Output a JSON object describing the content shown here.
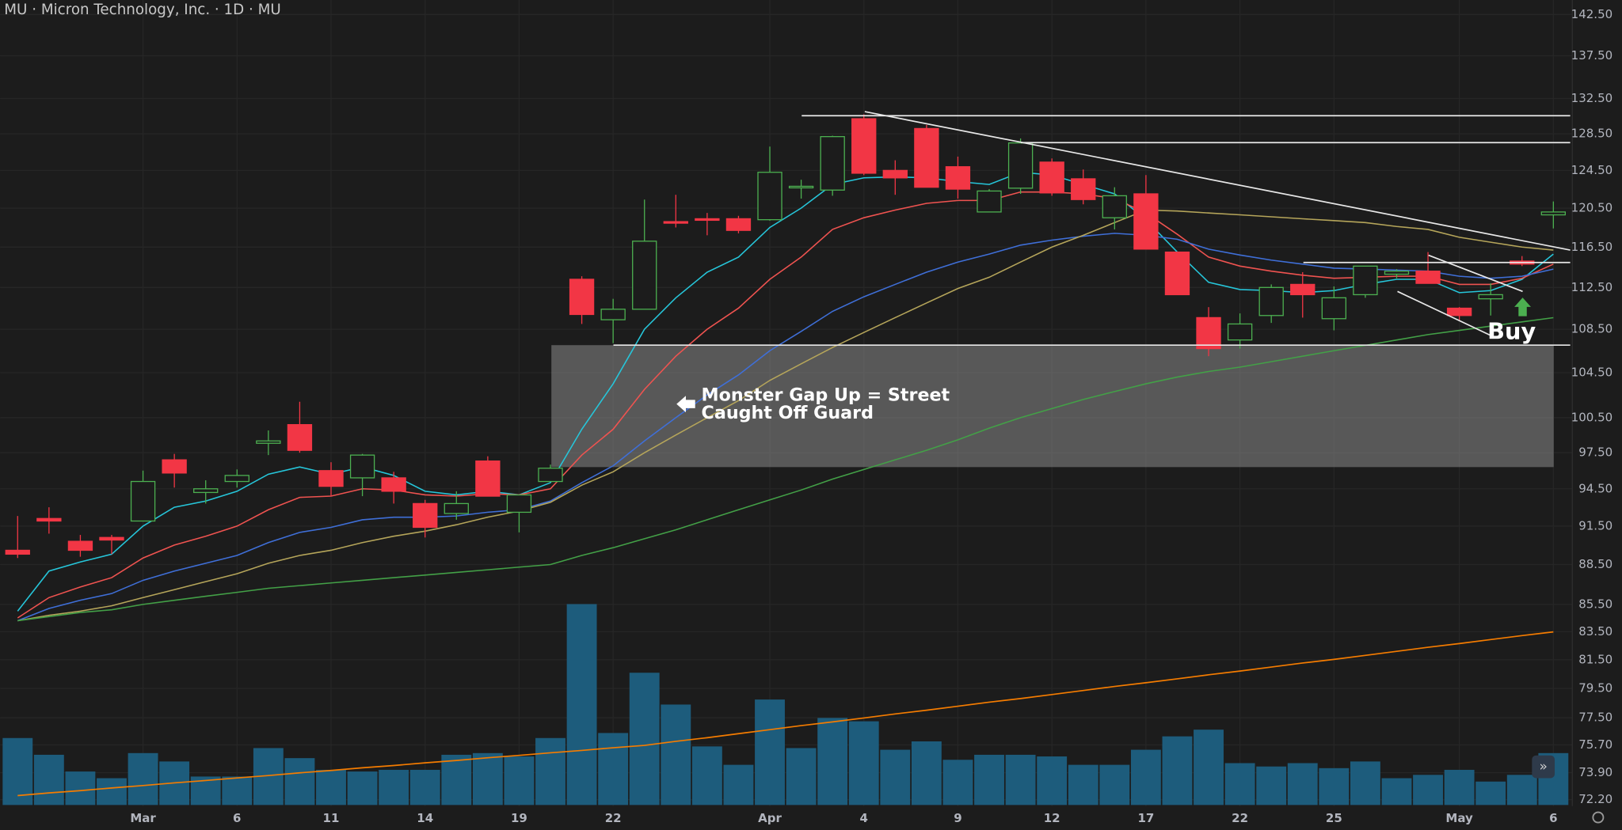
{
  "chart_data": {
    "type": "candlestick",
    "title": "MU · Micron Technology, Inc. · 1D · MU",
    "categories": [
      null,
      null,
      null,
      null,
      "Mar",
      null,
      null,
      "6",
      null,
      null,
      "11",
      null,
      null,
      "14",
      null,
      null,
      "19",
      null,
      null,
      "22",
      null,
      null,
      null,
      null,
      "Apr",
      null,
      null,
      "4",
      null,
      null,
      "9",
      null,
      null,
      "12",
      null,
      null,
      "17",
      null,
      null,
      "22",
      null,
      null,
      "25",
      null,
      null,
      null,
      "May",
      null,
      null,
      "6"
    ],
    "open": [
      89.6,
      92.1,
      90.3,
      90.6,
      91.9,
      96.9,
      94.2,
      95.1,
      98.3,
      99.9,
      96.0,
      95.4,
      95.4,
      93.3,
      92.5,
      96.8,
      92.6,
      95.1,
      113.3,
      109.4,
      110.4,
      119.1,
      119.4,
      119.4,
      119.3,
      122.7,
      122.4,
      130.2,
      124.5,
      129.1,
      124.9,
      120.1,
      122.6,
      125.4,
      123.6,
      119.5,
      122.0,
      116.0,
      109.6,
      107.5,
      109.8,
      112.8,
      109.5,
      111.8,
      113.8,
      114.1,
      110.5,
      111.4,
      115.1,
      119.8
    ],
    "high": [
      92.3,
      93.0,
      90.8,
      90.8,
      96.0,
      97.4,
      95.2,
      96.1,
      99.4,
      101.9,
      96.7,
      97.4,
      95.9,
      93.6,
      94.3,
      97.2,
      94.0,
      96.5,
      113.6,
      111.4,
      121.4,
      121.9,
      120.0,
      119.7,
      127.1,
      123.5,
      128.3,
      130.7,
      125.6,
      129.5,
      126.0,
      122.5,
      128.0,
      125.8,
      124.6,
      122.7,
      124.0,
      116.0,
      110.6,
      110.0,
      112.8,
      114.0,
      112.6,
      114.6,
      114.3,
      116.0,
      110.6,
      112.9,
      115.6,
      121.2
    ],
    "low": [
      89.0,
      90.9,
      89.1,
      89.3,
      91.9,
      94.6,
      93.3,
      94.6,
      97.3,
      97.5,
      93.9,
      93.9,
      93.3,
      90.6,
      92.0,
      93.9,
      91.0,
      95.1,
      109.0,
      107.2,
      110.4,
      118.5,
      117.7,
      117.9,
      119.2,
      121.5,
      121.8,
      124.0,
      121.9,
      122.7,
      121.5,
      120.1,
      122.0,
      121.8,
      120.9,
      118.3,
      116.3,
      111.8,
      106.0,
      106.7,
      109.1,
      109.6,
      108.4,
      111.5,
      113.4,
      112.9,
      109.3,
      109.8,
      114.6,
      118.4
    ],
    "close": [
      89.3,
      91.9,
      89.6,
      90.4,
      95.1,
      95.8,
      94.5,
      95.6,
      98.5,
      97.7,
      94.7,
      97.3,
      94.3,
      91.4,
      93.3,
      93.9,
      94.0,
      96.2,
      109.9,
      110.4,
      117.1,
      119.0,
      119.3,
      118.2,
      124.3,
      122.8,
      128.2,
      124.2,
      123.7,
      122.7,
      122.5,
      122.3,
      127.5,
      122.1,
      121.4,
      121.8,
      116.3,
      111.8,
      106.7,
      109.0,
      112.5,
      111.8,
      111.5,
      114.6,
      114.1,
      112.9,
      109.8,
      111.8,
      114.8,
      120.1
    ],
    "up_color": "#4caf50",
    "down_color": "#f23645",
    "log_scale": true,
    "grid": true,
    "ylim": [
      71.8,
      144.3
    ],
    "yticks": [
      {
        "value": 142.5,
        "label": "142.50"
      },
      {
        "value": 137.5,
        "label": "137.50"
      },
      {
        "value": 132.5,
        "label": "132.50"
      },
      {
        "value": 128.5,
        "label": "128.50"
      },
      {
        "value": 124.5,
        "label": "124.50"
      },
      {
        "value": 120.5,
        "label": "120.50"
      },
      {
        "value": 116.5,
        "label": "116.50"
      },
      {
        "value": 112.5,
        "label": "112.50"
      },
      {
        "value": 108.5,
        "label": "108.50"
      },
      {
        "value": 104.5,
        "label": "104.50"
      },
      {
        "value": 100.5,
        "label": "100.50"
      },
      {
        "value": 97.5,
        "label": "97.50"
      },
      {
        "value": 94.5,
        "label": "94.50"
      },
      {
        "value": 91.5,
        "label": "91.50"
      },
      {
        "value": 88.5,
        "label": "88.50"
      },
      {
        "value": 85.5,
        "label": "85.50"
      },
      {
        "value": 83.5,
        "label": "83.50"
      },
      {
        "value": 81.5,
        "label": "81.50"
      },
      {
        "value": 79.5,
        "label": "79.50"
      },
      {
        "value": 77.5,
        "label": "77.50"
      },
      {
        "value": 75.7,
        "label": "75.70"
      },
      {
        "value": 73.9,
        "label": "73.90"
      },
      {
        "value": 72.2,
        "label": "72.20"
      }
    ],
    "overlays": [
      {
        "color": "#26c6da",
        "values": [
          85,
          88,
          88.7,
          89.3,
          91.5,
          93,
          93.5,
          94.3,
          95.7,
          96.3,
          95.7,
          96.3,
          95.6,
          94.3,
          94.0,
          94.3,
          94.0,
          95,
          99.5,
          103.5,
          108.5,
          111.5,
          114,
          115.5,
          118.5,
          120.5,
          123,
          123.7,
          123.8,
          123.7,
          123.3,
          123,
          124.3,
          124,
          123,
          122,
          119.3,
          116,
          113,
          112.3,
          112.2,
          112,
          112.2,
          112.8,
          113.3,
          113.3,
          112,
          112.2,
          113.3,
          115.8
        ]
      },
      {
        "color": "#ef5350",
        "values": [
          84.5,
          86,
          86.8,
          87.5,
          89,
          90,
          90.7,
          91.5,
          92.8,
          93.8,
          93.9,
          94.5,
          94.4,
          94.0,
          93.9,
          94.1,
          94.0,
          94.5,
          97.3,
          99.5,
          103,
          106,
          108.5,
          110.5,
          113.3,
          115.5,
          118.3,
          119.5,
          120.3,
          121,
          121.3,
          121.3,
          122.2,
          122.2,
          122,
          121.5,
          120,
          117.8,
          115.5,
          114.6,
          114.1,
          113.7,
          113.4,
          113.5,
          113.6,
          113.6,
          112.8,
          112.8,
          113.4,
          114.8
        ]
      },
      {
        "color": "#3f6fd8",
        "values": [
          84.3,
          85.2,
          85.8,
          86.3,
          87.3,
          88,
          88.6,
          89.2,
          90.2,
          91,
          91.4,
          92,
          92.2,
          92.2,
          92.3,
          92.6,
          92.8,
          93.5,
          95,
          96.4,
          98.5,
          100.5,
          102.5,
          104.3,
          106.5,
          108.3,
          110.2,
          111.6,
          112.8,
          114,
          115,
          115.8,
          116.7,
          117.2,
          117.6,
          117.9,
          117.7,
          117.3,
          116.3,
          115.7,
          115.2,
          114.8,
          114.4,
          114.3,
          114.2,
          114.1,
          113.6,
          113.4,
          113.6,
          114.3
        ]
      },
      {
        "color": "#b5a55a",
        "values": [
          84.3,
          84.7,
          85,
          85.4,
          86,
          86.6,
          87.2,
          87.8,
          88.6,
          89.2,
          89.6,
          90.2,
          90.7,
          91.1,
          91.6,
          92.2,
          92.7,
          93.4,
          94.8,
          95.9,
          97.5,
          99,
          100.5,
          102,
          103.8,
          105.3,
          106.8,
          108.2,
          109.6,
          111,
          112.4,
          113.5,
          115,
          116.5,
          117.7,
          119,
          120.3,
          120.2,
          120,
          119.8,
          119.6,
          119.4,
          119.2,
          119,
          118.6,
          118.3,
          117.5,
          117,
          116.5,
          116.2
        ]
      },
      {
        "color": "#43a047",
        "values": [
          84.3,
          84.6,
          84.9,
          85.1,
          85.5,
          85.8,
          86.1,
          86.4,
          86.7,
          86.9,
          87.1,
          87.3,
          87.5,
          87.7,
          87.9,
          88.1,
          88.3,
          88.5,
          89.2,
          89.8,
          90.5,
          91.2,
          92,
          92.8,
          93.6,
          94.4,
          95.3,
          96.1,
          96.9,
          97.7,
          98.6,
          99.6,
          100.5,
          101.3,
          102.1,
          102.8,
          103.5,
          104.1,
          104.6,
          105,
          105.5,
          106,
          106.5,
          107,
          107.5,
          108,
          108.4,
          108.8,
          109.2,
          109.6
        ]
      }
    ],
    "volume": {
      "color": "#1d5c7c",
      "lim": [
        0,
        75
      ],
      "values": [
        20,
        15,
        10,
        8,
        15.5,
        13,
        8.5,
        8.5,
        17,
        14,
        10.5,
        10,
        10.5,
        10.5,
        15,
        15.5,
        14.5,
        20,
        60,
        21.5,
        39.5,
        30,
        17.5,
        12,
        31.5,
        17,
        26,
        25,
        16.5,
        19,
        13.5,
        15,
        15,
        14.5,
        12,
        12,
        16.5,
        20.5,
        22.5,
        12.5,
        11.5,
        12.5,
        11,
        13,
        8,
        9,
        10.5,
        7,
        9,
        15.5
      ],
      "average": {
        "color": "#f57c00",
        "values": [
          2.8,
          3.6,
          4.3,
          5.1,
          5.8,
          6.6,
          7.3,
          8.1,
          8.8,
          9.6,
          10.3,
          11.1,
          11.8,
          12.6,
          13.3,
          14.1,
          14.8,
          15.6,
          16.3,
          17.1,
          17.8,
          19.0,
          20.1,
          21.3,
          22.5,
          23.7,
          24.8,
          26.0,
          27.2,
          28.3,
          29.5,
          30.7,
          31.8,
          33.0,
          34.2,
          35.4,
          36.5,
          37.7,
          38.9,
          40.0,
          41.2,
          42.4,
          43.5,
          44.7,
          45.9,
          47.1,
          48.2,
          49.4,
          50.6,
          51.7
        ]
      }
    },
    "annotations": [
      "Monster Gap Up = Street",
      "Caught Off Guard",
      "Buy"
    ]
  }
}
